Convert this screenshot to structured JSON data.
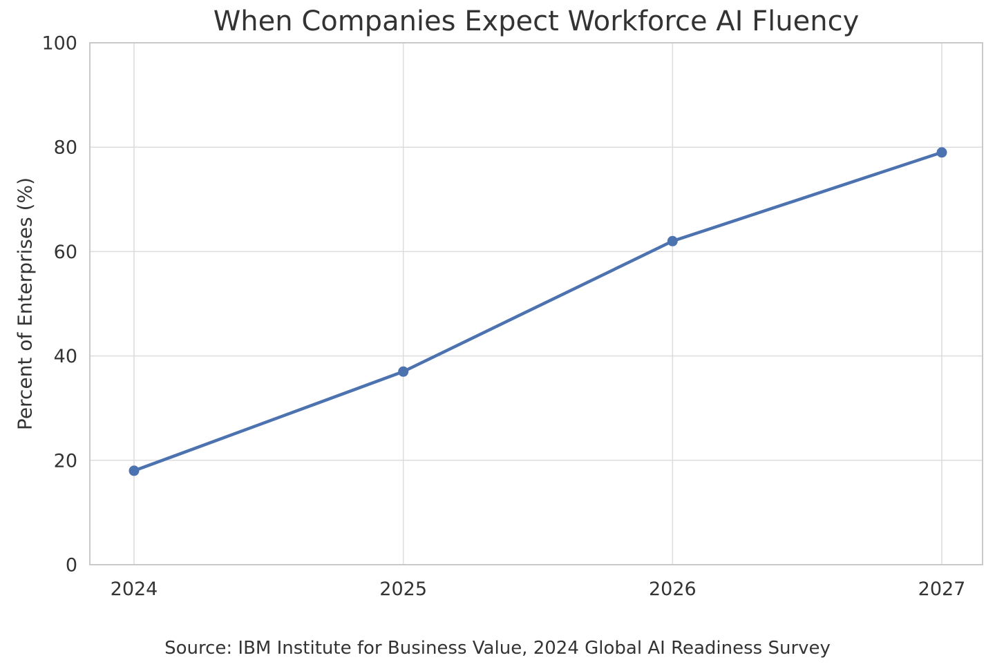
{
  "chart_data": {
    "type": "line",
    "title": "When Companies Expect Workforce AI Fluency",
    "categories": [
      "2024",
      "2025",
      "2026",
      "2027"
    ],
    "series": [
      {
        "name": "Percent of Enterprises",
        "values": [
          18,
          37,
          62,
          79
        ],
        "color": "#4c72b0",
        "marker": "circle"
      }
    ],
    "xlabel": "",
    "ylabel": "Percent of Enterprises (%)",
    "ylim": [
      0,
      100
    ],
    "yticks": [
      0,
      20,
      40,
      60,
      80,
      100
    ],
    "grid": true,
    "legend": "none",
    "source_note": "Source: IBM Institute for Business Value, 2024 Global AI Readiness Survey",
    "colors": {
      "line": "#4c72b0",
      "marker": "#4c72b0",
      "grid": "#dcdcdc",
      "spine": "#c9c9c9",
      "tick_text": "#333333",
      "background": "#ffffff"
    }
  }
}
